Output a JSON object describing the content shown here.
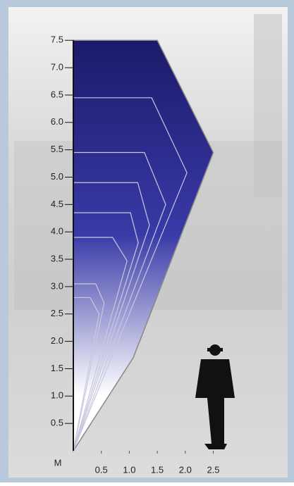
{
  "chart_data": {
    "type": "envelope",
    "x_unit_label": "M",
    "color": "#1c1a6a",
    "xlim": [
      0,
      2.5
    ],
    "ylim": [
      0,
      7.5
    ],
    "xticks": [
      0.5,
      {
        "value": 1.0,
        "label": "1.0"
      },
      1.5,
      {
        "value": 2.0,
        "label": "2.0"
      },
      2.5
    ],
    "yticks": [
      0.5,
      {
        "value": 1.0,
        "label": "1.0"
      },
      1.5,
      {
        "value": 2.0,
        "label": "2.0"
      },
      2.5,
      {
        "value": 3.0,
        "label": "3.0"
      },
      3.5,
      {
        "value": 4.0,
        "label": "4.0"
      },
      4.5,
      {
        "value": 5.0,
        "label": "5.0"
      },
      5.5,
      {
        "value": 6.0,
        "label": "6.0"
      },
      6.5,
      {
        "value": 7.0,
        "label": "7.0"
      },
      7.5
    ],
    "series": [
      {
        "x": [
          0,
          0,
          1.5,
          2.5,
          1.07
        ],
        "values": [
          0,
          7.5,
          7.5,
          5.45,
          1.7
        ]
      },
      {
        "x": [
          0,
          0,
          1.4,
          2.03
        ],
        "values": [
          0,
          6.45,
          6.45,
          5.08
        ]
      },
      {
        "x": [
          0,
          0,
          1.27,
          1.65
        ],
        "values": [
          0,
          5.45,
          5.45,
          4.5
        ]
      },
      {
        "x": [
          0,
          0,
          1.15,
          1.36
        ],
        "values": [
          0,
          4.9,
          4.9,
          4.12
        ]
      },
      {
        "x": [
          0,
          0,
          1.02,
          1.16
        ],
        "values": [
          0,
          4.35,
          4.35,
          3.8
        ]
      },
      {
        "x": [
          0,
          0,
          0.7,
          0.96
        ],
        "values": [
          0,
          3.9,
          3.9,
          3.47
        ]
      },
      {
        "x": [
          0,
          0,
          0.4,
          0.55
        ],
        "values": [
          0,
          3.05,
          3.05,
          2.7
        ]
      },
      {
        "x": [
          0,
          0,
          0.3,
          0.46
        ],
        "values": [
          0,
          2.8,
          2.8,
          2.5
        ]
      }
    ]
  }
}
